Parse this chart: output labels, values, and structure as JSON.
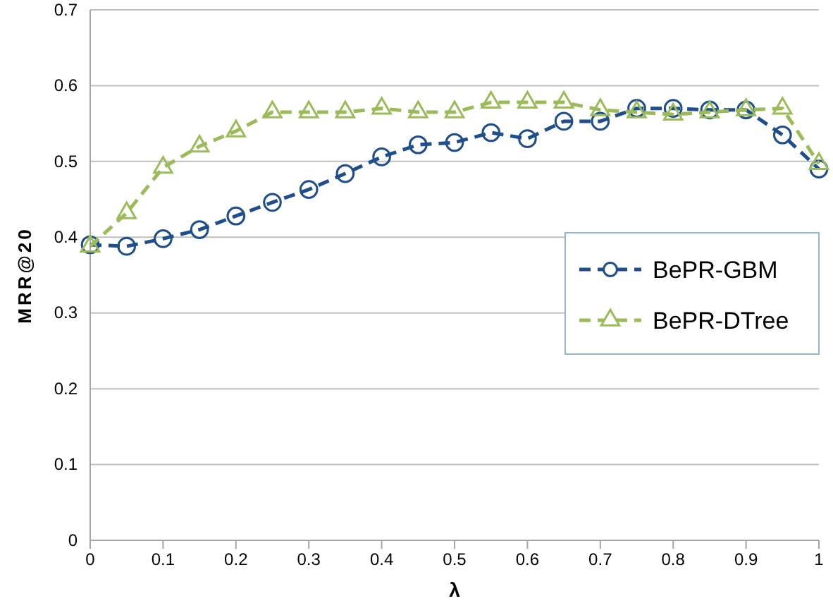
{
  "chart_data": {
    "type": "line",
    "xlabel": "λ",
    "ylabel": "MRR@20",
    "x": [
      0,
      0.05,
      0.1,
      0.15,
      0.2,
      0.25,
      0.3,
      0.35,
      0.4,
      0.45,
      0.5,
      0.55,
      0.6,
      0.65,
      0.7,
      0.75,
      0.8,
      0.85,
      0.9,
      0.95,
      1
    ],
    "series": [
      {
        "name": "BePR-GBM",
        "color": "#1f4e8c",
        "marker": "circle",
        "values": [
          0.39,
          0.388,
          0.398,
          0.41,
          0.428,
          0.446,
          0.463,
          0.484,
          0.506,
          0.522,
          0.525,
          0.538,
          0.53,
          0.553,
          0.553,
          0.57,
          0.57,
          0.568,
          0.568,
          0.535,
          0.49
        ]
      },
      {
        "name": "BePR-DTree",
        "color": "#9bbb59",
        "marker": "triangle",
        "values": [
          0.388,
          0.432,
          0.492,
          0.52,
          0.54,
          0.565,
          0.565,
          0.565,
          0.57,
          0.565,
          0.565,
          0.578,
          0.578,
          0.578,
          0.568,
          0.565,
          0.562,
          0.565,
          0.568,
          0.57,
          0.497
        ]
      }
    ],
    "xlim": [
      0,
      1
    ],
    "xticks": [
      0,
      0.1,
      0.2,
      0.3,
      0.4,
      0.5,
      0.6,
      0.7,
      0.8,
      0.9,
      1
    ],
    "ylim": [
      0,
      0.7
    ],
    "yticks": [
      0,
      0.1,
      0.2,
      0.3,
      0.4,
      0.5,
      0.6,
      0.7
    ],
    "grid": "y",
    "legend": "right",
    "line_style": "dashed"
  }
}
